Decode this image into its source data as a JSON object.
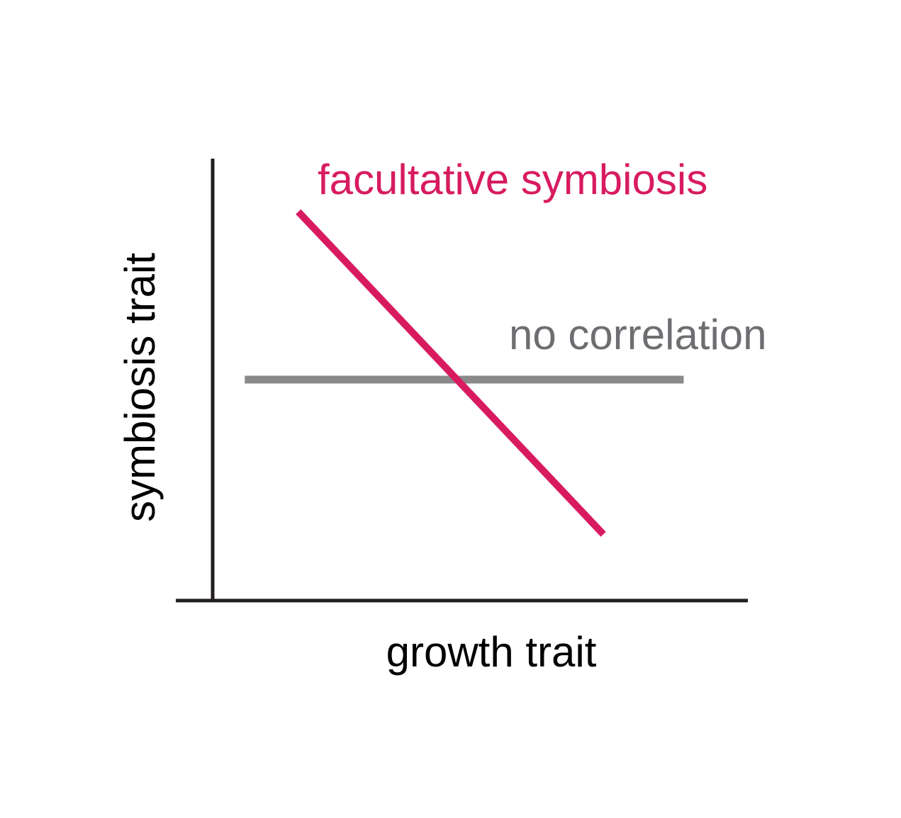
{
  "chart_data": {
    "type": "line",
    "title": "",
    "xlabel": "growth trait",
    "ylabel": "symbiosis trait",
    "xlim": [
      0,
      10
    ],
    "ylim": [
      0,
      10
    ],
    "grid": false,
    "legend": "none",
    "series": [
      {
        "name": "facultative symbiosis",
        "color": "#d81b60",
        "x": [
          1.6,
          7.3
        ],
        "y": [
          8.8,
          1.5
        ]
      },
      {
        "name": "no correlation",
        "color": "#8a8a8a",
        "x": [
          0.6,
          8.8
        ],
        "y": [
          5.0,
          5.0
        ]
      }
    ]
  },
  "colors": {
    "axis": "#231f20",
    "axis_label": "#000000",
    "facultative": "#d81b60",
    "no_correlation_line": "#8a8a8a",
    "no_correlation_text": "#6d6e71"
  }
}
